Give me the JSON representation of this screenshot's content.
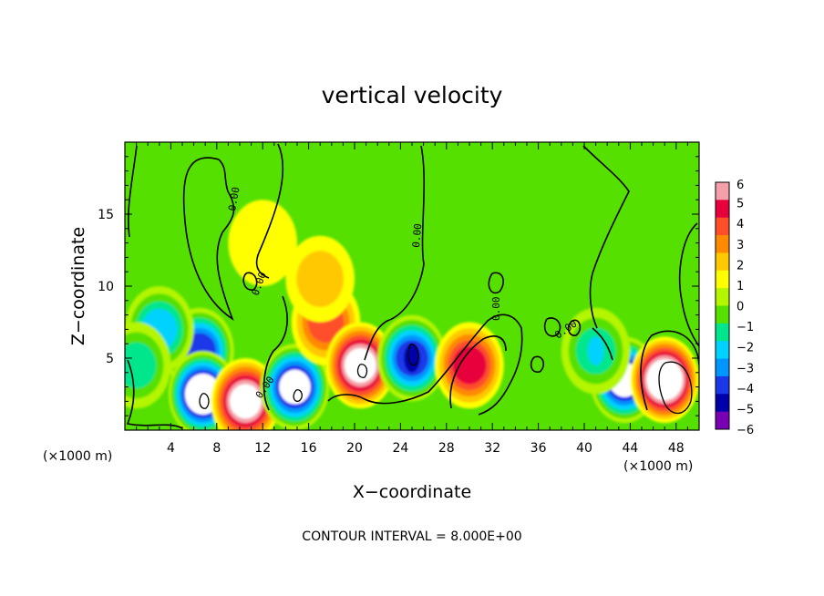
{
  "chart_data": {
    "type": "heatmap",
    "title": "vertical velocity",
    "xlabel": "X−coordinate",
    "ylabel": "Z−coordinate",
    "x_unit_left": "(×1000 m)",
    "x_unit_right": "(×1000 m)",
    "xlim": [
      0,
      50
    ],
    "ylim": [
      0,
      20
    ],
    "xticks": [
      4,
      8,
      12,
      16,
      20,
      24,
      28,
      32,
      36,
      40,
      44,
      48
    ],
    "yticks": [
      5,
      10,
      15
    ],
    "colorbar_ticks": [
      "6",
      "5",
      "4",
      "3",
      "2",
      "1",
      "0",
      "−1",
      "−2",
      "−3",
      "−4",
      "−5",
      "−6"
    ],
    "colorbar_colors": [
      "#f5a0a8",
      "#e8003c",
      "#ff4f2a",
      "#ff8a00",
      "#ffc800",
      "#ffff00",
      "#b4f500",
      "#55e000",
      "#00e68c",
      "#00d2ff",
      "#0096ff",
      "#1a38e8",
      "#0000aa",
      "#7a00b4"
    ],
    "contour_label": "0.00",
    "contour_interval_text": "CONTOUR INTERVAL = 8.000E+00",
    "features": [
      {
        "x": 6.5,
        "z": 5.5,
        "w": -5.5
      },
      {
        "x": 6.8,
        "z": 2.5,
        "w": -7.5
      },
      {
        "x": 10.5,
        "z": 2.0,
        "w": 6.5
      },
      {
        "x": 14.8,
        "z": 3.0,
        "w": -6.5
      },
      {
        "x": 17.5,
        "z": 7.5,
        "w": 4.0
      },
      {
        "x": 20.5,
        "z": 4.5,
        "w": 6.5
      },
      {
        "x": 25.0,
        "z": 5.0,
        "w": -6.0
      },
      {
        "x": 30.0,
        "z": 4.5,
        "w": 5.0
      },
      {
        "x": 43.5,
        "z": 3.5,
        "w": -7.0
      },
      {
        "x": 47.0,
        "z": 3.5,
        "w": 7.5
      },
      {
        "x": 3.0,
        "z": 7.0,
        "w": -3.5
      },
      {
        "x": 41.0,
        "z": 5.5,
        "w": -3.0
      },
      {
        "x": 17.0,
        "z": 10.5,
        "w": 1.5
      },
      {
        "x": 12.0,
        "z": 13.0,
        "w": 0.8
      },
      {
        "x": 1.0,
        "z": 4.5,
        "w": -2.5
      }
    ]
  }
}
